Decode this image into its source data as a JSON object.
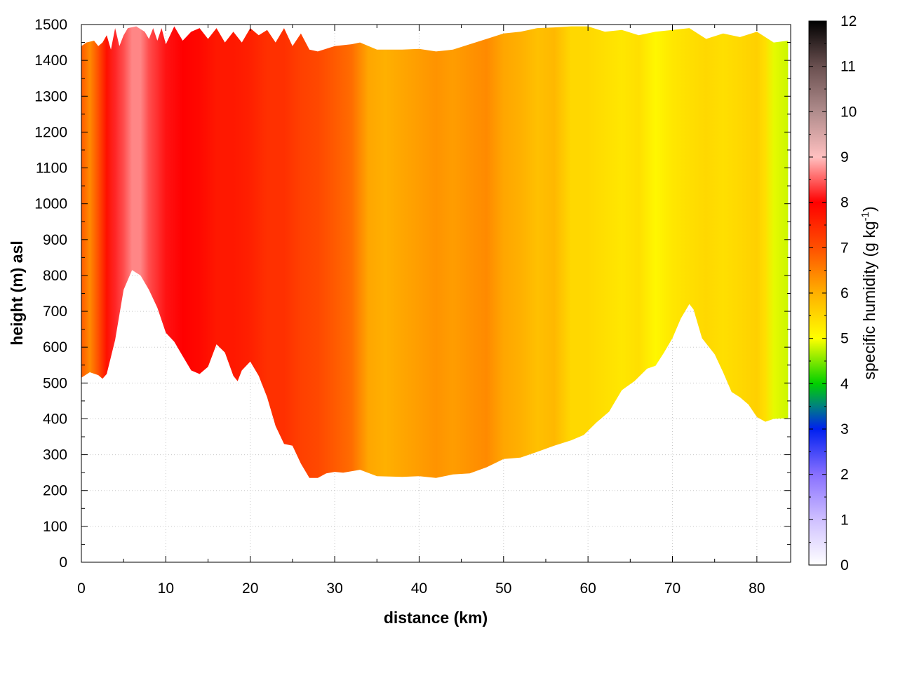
{
  "chart_data": {
    "type": "heatmap",
    "title": "",
    "xlabel": "distance (km)",
    "ylabel": "height (m) asl",
    "xlim": [
      0,
      84
    ],
    "ylim": [
      0,
      1500
    ],
    "x_ticks": [
      0,
      10,
      20,
      30,
      40,
      50,
      60,
      70,
      80
    ],
    "y_ticks": [
      0,
      100,
      200,
      300,
      400,
      500,
      600,
      700,
      800,
      900,
      1000,
      1100,
      1200,
      1300,
      1400,
      1500
    ],
    "grid": true,
    "colorbar": {
      "label_main": "specific humidity (g kg",
      "label_exp": "-1",
      "label_close": ")",
      "range": [
        0,
        12
      ],
      "ticks": [
        0,
        1,
        2,
        3,
        4,
        5,
        6,
        7,
        8,
        9,
        10,
        11,
        12
      ],
      "palette": [
        {
          "value": 0,
          "color": "#ffffff"
        },
        {
          "value": 1,
          "color": "#cfc0ff"
        },
        {
          "value": 2,
          "color": "#8870ff"
        },
        {
          "value": 3,
          "color": "#0020f0"
        },
        {
          "value": 3.5,
          "color": "#008080"
        },
        {
          "value": 4,
          "color": "#00d000"
        },
        {
          "value": 5,
          "color": "#ffff00"
        },
        {
          "value": 6,
          "color": "#ffb000"
        },
        {
          "value": 7,
          "color": "#ff5000"
        },
        {
          "value": 8,
          "color": "#ff0000"
        },
        {
          "value": 9,
          "color": "#ffc0c0"
        },
        {
          "value": 10,
          "color": "#b08c8c"
        },
        {
          "value": 11,
          "color": "#6a5050"
        },
        {
          "value": 12,
          "color": "#000000"
        }
      ]
    },
    "terrain_m": [
      [
        0,
        515
      ],
      [
        1,
        530
      ],
      [
        2,
        522
      ],
      [
        2.5,
        512
      ],
      [
        3,
        525
      ],
      [
        4,
        620
      ],
      [
        5,
        760
      ],
      [
        6,
        815
      ],
      [
        7,
        800
      ],
      [
        8,
        760
      ],
      [
        9,
        710
      ],
      [
        10,
        640
      ],
      [
        11,
        615
      ],
      [
        12,
        575
      ],
      [
        13,
        535
      ],
      [
        14,
        525
      ],
      [
        15,
        545
      ],
      [
        16,
        608
      ],
      [
        17,
        585
      ],
      [
        18,
        520
      ],
      [
        18.5,
        505
      ],
      [
        19,
        535
      ],
      [
        20,
        560
      ],
      [
        21,
        520
      ],
      [
        22,
        460
      ],
      [
        23,
        380
      ],
      [
        24,
        330
      ],
      [
        25,
        325
      ],
      [
        26,
        275
      ],
      [
        27,
        235
      ],
      [
        28,
        235
      ],
      [
        29,
        248
      ],
      [
        30,
        252
      ],
      [
        31,
        250
      ],
      [
        33,
        258
      ],
      [
        35,
        240
      ],
      [
        38,
        238
      ],
      [
        40,
        240
      ],
      [
        42,
        235
      ],
      [
        44,
        245
      ],
      [
        46,
        248
      ],
      [
        48,
        265
      ],
      [
        50,
        288
      ],
      [
        52,
        292
      ],
      [
        54,
        308
      ],
      [
        56,
        325
      ],
      [
        58,
        340
      ],
      [
        59.5,
        355
      ],
      [
        61,
        390
      ],
      [
        62.5,
        420
      ],
      [
        64,
        480
      ],
      [
        65.5,
        505
      ],
      [
        67,
        540
      ],
      [
        68,
        548
      ],
      [
        69,
        585
      ],
      [
        70,
        625
      ],
      [
        71,
        680
      ],
      [
        72,
        720
      ],
      [
        72.5,
        705
      ],
      [
        73.5,
        625
      ],
      [
        75,
        580
      ],
      [
        76,
        530
      ],
      [
        77,
        475
      ],
      [
        78,
        460
      ],
      [
        79,
        440
      ],
      [
        80,
        405
      ],
      [
        81,
        392
      ],
      [
        82,
        400
      ],
      [
        83.7,
        402
      ]
    ],
    "top_m": [
      [
        0,
        1440
      ],
      [
        0.6,
        1450
      ],
      [
        1.5,
        1455
      ],
      [
        2,
        1440
      ],
      [
        2.5,
        1450
      ],
      [
        3,
        1470
      ],
      [
        3.5,
        1430
      ],
      [
        4,
        1490
      ],
      [
        4.5,
        1440
      ],
      [
        5,
        1470
      ],
      [
        5.5,
        1490
      ],
      [
        6.5,
        1495
      ],
      [
        7.5,
        1480
      ],
      [
        8,
        1460
      ],
      [
        8.5,
        1490
      ],
      [
        9,
        1455
      ],
      [
        9.5,
        1490
      ],
      [
        10,
        1445
      ],
      [
        11,
        1495
      ],
      [
        12,
        1455
      ],
      [
        13,
        1480
      ],
      [
        14,
        1490
      ],
      [
        15,
        1460
      ],
      [
        16,
        1490
      ],
      [
        17,
        1450
      ],
      [
        18,
        1480
      ],
      [
        19,
        1450
      ],
      [
        20,
        1490
      ],
      [
        21,
        1470
      ],
      [
        22,
        1485
      ],
      [
        23,
        1450
      ],
      [
        24,
        1490
      ],
      [
        25,
        1440
      ],
      [
        26,
        1475
      ],
      [
        27,
        1430
      ],
      [
        28,
        1425
      ],
      [
        30,
        1440
      ],
      [
        32,
        1445
      ],
      [
        33,
        1450
      ],
      [
        35,
        1430
      ],
      [
        38,
        1430
      ],
      [
        40,
        1432
      ],
      [
        42,
        1425
      ],
      [
        44,
        1430
      ],
      [
        46,
        1445
      ],
      [
        48,
        1460
      ],
      [
        50,
        1475
      ],
      [
        52,
        1480
      ],
      [
        54,
        1490
      ],
      [
        56,
        1492
      ],
      [
        58,
        1495
      ],
      [
        60,
        1495
      ],
      [
        62,
        1480
      ],
      [
        64,
        1485
      ],
      [
        66,
        1470
      ],
      [
        68,
        1480
      ],
      [
        70,
        1485
      ],
      [
        72,
        1490
      ],
      [
        74,
        1460
      ],
      [
        76,
        1475
      ],
      [
        78,
        1465
      ],
      [
        80,
        1480
      ],
      [
        82,
        1450
      ],
      [
        83.7,
        1455
      ]
    ],
    "humidity_x_km": [
      0,
      1,
      2,
      3,
      4,
      5,
      6,
      7,
      8,
      10,
      12,
      14,
      16,
      18,
      20,
      22,
      24,
      26,
      28,
      30,
      32,
      34,
      36,
      38,
      40,
      42,
      44,
      46,
      48,
      50,
      52,
      54,
      56,
      58,
      60,
      62,
      64,
      66,
      68,
      70,
      72,
      74,
      76,
      78,
      80,
      81,
      82,
      83.7
    ],
    "humidity_g_kg": [
      6.9,
      6.4,
      7.0,
      7.8,
      8.2,
      8.4,
      8.7,
      8.7,
      8.4,
      8.1,
      8.0,
      7.9,
      7.7,
      7.7,
      7.6,
      7.4,
      7.4,
      7.2,
      7.1,
      6.9,
      6.7,
      6.1,
      6.0,
      6.1,
      6.2,
      6.3,
      6.2,
      6.3,
      6.4,
      6.1,
      6.0,
      5.8,
      5.9,
      5.5,
      5.5,
      5.4,
      5.3,
      5.4,
      5.1,
      5.3,
      5.4,
      5.5,
      5.4,
      5.5,
      5.6,
      5.4,
      4.9,
      4.8
    ]
  }
}
